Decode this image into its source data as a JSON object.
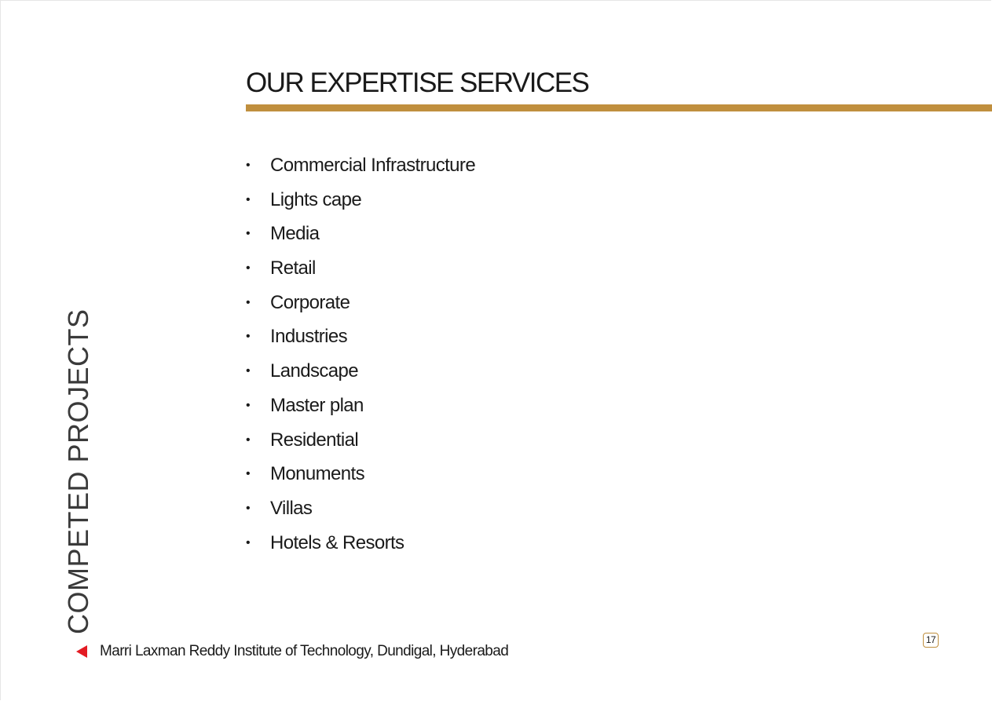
{
  "slide": {
    "title": "OUR EXPERTISE SERVICES",
    "side_label": "COMPETED PROJECTS",
    "footer": "Marri Laxman Reddy Institute of Technology, Dundigal, Hyderabad",
    "page_number": "17",
    "accent_color": "#c08f3e",
    "arrow_color": "#e31b23",
    "bullet": "•",
    "services": [
      "Commercial Infrastructure",
      "Lights cape",
      "Media",
      "Retail",
      "Corporate",
      "Industries",
      "Landscape",
      "Master plan",
      "Residential",
      "Monuments",
      "Villas",
      "Hotels & Resorts"
    ]
  }
}
